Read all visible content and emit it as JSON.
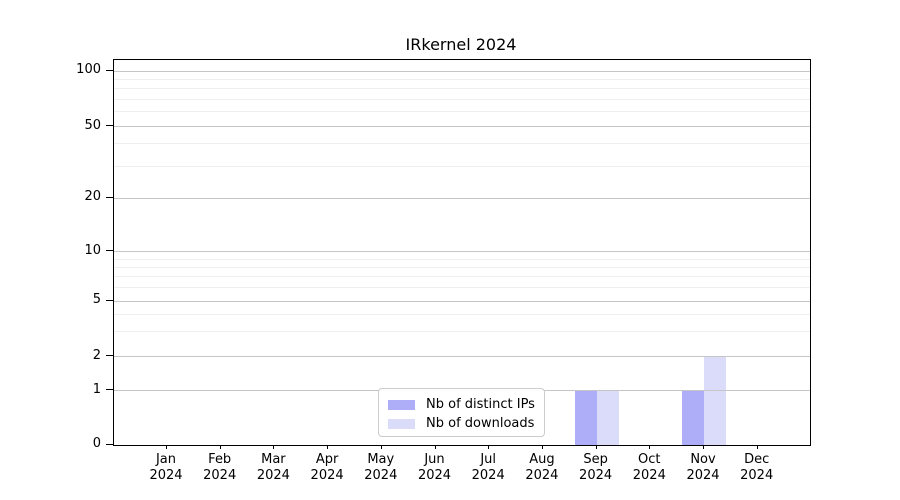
{
  "title": "IRkernel 2024",
  "colors": {
    "distinct_ips": "#aeaef8",
    "downloads": "#dbdbfa",
    "grid_major": "#c6c6c6",
    "grid_minor": "#efefef",
    "axis": "#000000",
    "legend_border": "#cccccc"
  },
  "y_axis": {
    "scale": "symlog",
    "major_ticks": [
      100,
      50,
      20,
      10,
      5,
      2,
      1,
      0
    ],
    "major_tick_labels": [
      "100",
      "50",
      "20",
      "10",
      "5",
      "2",
      "1",
      "0"
    ],
    "minor_ticks": [
      3,
      4,
      6,
      7,
      8,
      9,
      30,
      40,
      60,
      70,
      80,
      90
    ]
  },
  "x_axis": {
    "ticks": [
      {
        "month": "Jan",
        "year": "2024"
      },
      {
        "month": "Feb",
        "year": "2024"
      },
      {
        "month": "Mar",
        "year": "2024"
      },
      {
        "month": "Apr",
        "year": "2024"
      },
      {
        "month": "May",
        "year": "2024"
      },
      {
        "month": "Jun",
        "year": "2024"
      },
      {
        "month": "Jul",
        "year": "2024"
      },
      {
        "month": "Aug",
        "year": "2024"
      },
      {
        "month": "Sep",
        "year": "2024"
      },
      {
        "month": "Oct",
        "year": "2024"
      },
      {
        "month": "Nov",
        "year": "2024"
      },
      {
        "month": "Dec",
        "year": "2024"
      }
    ]
  },
  "legend": {
    "items": [
      {
        "label": "Nb of distinct IPs",
        "color_key": "distinct_ips"
      },
      {
        "label": "Nb of downloads",
        "color_key": "downloads"
      }
    ]
  },
  "chart_data": {
    "type": "bar",
    "title": "IRkernel 2024",
    "categories": [
      "Jan 2024",
      "Feb 2024",
      "Mar 2024",
      "Apr 2024",
      "May 2024",
      "Jun 2024",
      "Jul 2024",
      "Aug 2024",
      "Sep 2024",
      "Oct 2024",
      "Nov 2024",
      "Dec 2024"
    ],
    "series": [
      {
        "name": "Nb of distinct IPs",
        "color": "#aeaef8",
        "values": [
          0,
          0,
          0,
          0,
          0,
          0,
          0,
          0,
          1,
          0,
          1,
          0
        ]
      },
      {
        "name": "Nb of downloads",
        "color": "#dbdbfa",
        "values": [
          0,
          0,
          0,
          0,
          0,
          0,
          0,
          0,
          1,
          0,
          2,
          0
        ]
      }
    ],
    "xlabel": "",
    "ylabel": "",
    "yscale": "symlog",
    "y_ticks": [
      0,
      1,
      2,
      5,
      10,
      20,
      50,
      100
    ],
    "ylim": [
      0,
      115
    ],
    "grid": "horizontal, major and log-minor gridlines",
    "legend_position": "lower center"
  }
}
